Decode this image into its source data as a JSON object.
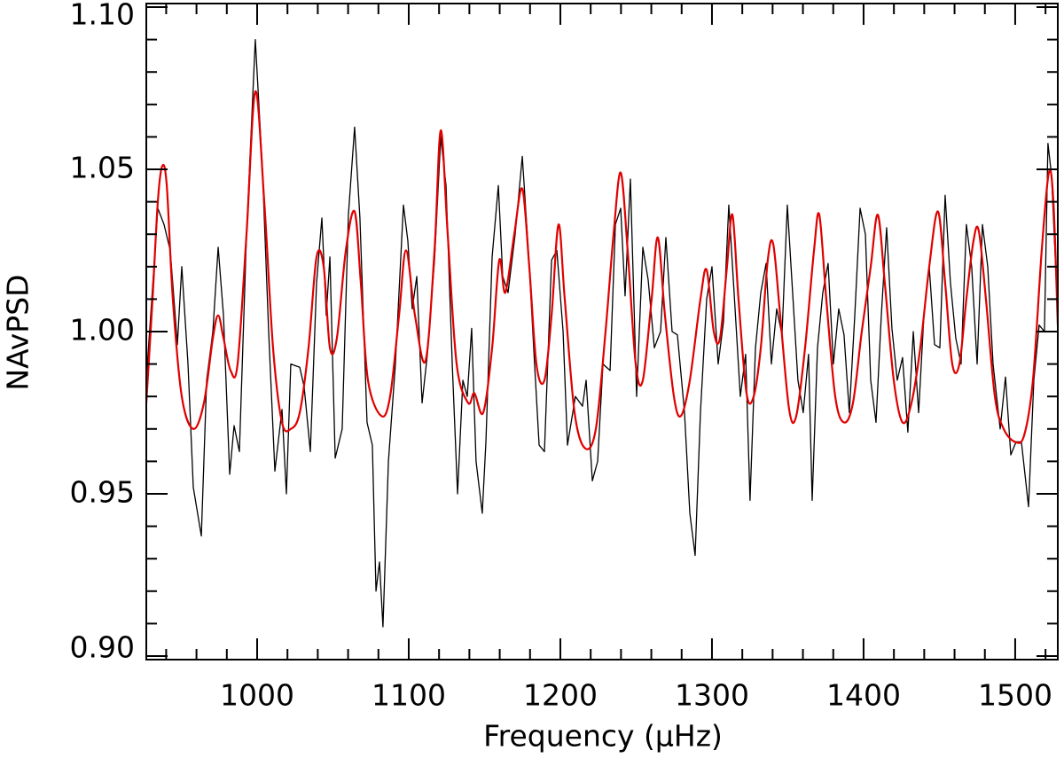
{
  "chart_data": {
    "type": "line",
    "xlabel": "Frequency (μHz)",
    "ylabel": "NAvPSD",
    "xlim": [
      926.9,
      1528.1
    ],
    "ylim": [
      0.8989,
      1.1011
    ],
    "xticks": [
      1000,
      1100,
      1200,
      1300,
      1400,
      1500
    ],
    "xminorticks": [
      940,
      960,
      980,
      1020,
      1040,
      1060,
      1080,
      1120,
      1140,
      1160,
      1180,
      1220,
      1240,
      1260,
      1280,
      1320,
      1340,
      1360,
      1380,
      1420,
      1440,
      1460,
      1480,
      1520
    ],
    "yticks": [
      {
        "value": 0.9,
        "label": "0.90"
      },
      0.95,
      {
        "value": 1,
        "label": "1.00"
      },
      1.05,
      {
        "value": 1.1,
        "label": "1.10"
      }
    ],
    "yminorticks": [
      0.91,
      0.92,
      0.93,
      0.94,
      0.96,
      0.97,
      0.98,
      0.99,
      1.01,
      1.02,
      1.03,
      1.04,
      1.06,
      1.07,
      1.08,
      1.09
    ],
    "series": [
      {
        "color": "#000000",
        "smooth": false,
        "x": [
          926.9,
          929.8,
          934.5,
          938.6,
          942.7,
          947.4,
          950.3,
          954.4,
          957.9,
          963.2,
          966.7,
          970.8,
          974.3,
          977.8,
          981.9,
          984.8,
          988.3,
          993.0,
          998.8,
          1003.5,
          1007.6,
          1011.7,
          1016.4,
          1019.3,
          1022.2,
          1028.1,
          1031.0,
          1035.1,
          1039.2,
          1042.7,
          1045.6,
          1048.0,
          1051.5,
          1056.1,
          1060.2,
          1064.3,
          1067.8,
          1072.5,
          1076.0,
          1078.4,
          1080.7,
          1083.0,
          1086.6,
          1091.2,
          1096.5,
          1099.4,
          1102.3,
          1105.3,
          1108.8,
          1112.3,
          1117.0,
          1121.1,
          1124.6,
          1128.7,
          1132.2,
          1135.7,
          1138.6,
          1141.5,
          1144.4,
          1148.5,
          1150.9,
          1155.0,
          1159.1,
          1162.0,
          1165.5,
          1170.2,
          1174.9,
          1178.9,
          1183.0,
          1186.0,
          1189.5,
          1194.2,
          1197.7,
          1201.8,
          1204.7,
          1209.9,
          1214.6,
          1217.0,
          1221.1,
          1224.6,
          1228.1,
          1232.8,
          1236.3,
          1239.8,
          1242.7,
          1246.2,
          1250.3,
          1254.4,
          1257.9,
          1262.0,
          1266.1,
          1269.6,
          1273.7,
          1277.2,
          1281.9,
          1285.4,
          1288.9,
          1292.4,
          1296.5,
          1300.0,
          1304.1,
          1307.6,
          1311.1,
          1314.6,
          1318.7,
          1322.2,
          1325.1,
          1328.7,
          1332.2,
          1335.7,
          1339.2,
          1342.7,
          1346.2,
          1349.7,
          1353.2,
          1356.7,
          1360.2,
          1363.7,
          1366.1,
          1369.6,
          1373.1,
          1376.6,
          1380.1,
          1383.6,
          1387.1,
          1390.6,
          1394.2,
          1397.7,
          1401.2,
          1404.7,
          1408.2,
          1411.7,
          1415.2,
          1418.7,
          1422.2,
          1425.7,
          1429.2,
          1432.8,
          1436.3,
          1439.8,
          1443.3,
          1446.8,
          1450.3,
          1453.8,
          1457.3,
          1460.8,
          1464.3,
          1467.8,
          1471.3,
          1474.9,
          1478.4,
          1481.9,
          1485.4,
          1490.1,
          1493.6,
          1497.1,
          1500.6,
          1504.1,
          1508.8,
          1512.3,
          1515.8,
          1519.3,
          1521.6,
          1524.0,
          1528.1
        ],
        "values": [
          0.985,
          1.005,
          1.038,
          1.033,
          1.025,
          0.996,
          1.02,
          0.99,
          0.952,
          0.937,
          0.985,
          1.0,
          1.026,
          1.005,
          0.956,
          0.971,
          0.963,
          1.03,
          1.09,
          1.05,
          1.0,
          0.957,
          0.976,
          0.95,
          0.99,
          0.989,
          0.983,
          0.963,
          1.015,
          1.035,
          1.005,
          1.023,
          0.961,
          0.97,
          1.036,
          1.063,
          1.035,
          0.972,
          0.965,
          0.92,
          0.929,
          0.909,
          0.96,
          0.99,
          1.039,
          1.028,
          1.007,
          1.017,
          0.978,
          0.993,
          1.022,
          1.06,
          1.045,
          0.99,
          0.95,
          0.985,
          0.98,
          1.001,
          0.96,
          0.944,
          0.966,
          1.023,
          1.045,
          1.017,
          1.012,
          1.03,
          1.054,
          1.025,
          0.99,
          0.965,
          0.963,
          1.022,
          1.025,
          1.0,
          0.965,
          0.98,
          0.977,
          0.985,
          0.954,
          0.96,
          0.99,
          0.988,
          1.033,
          1.038,
          1.011,
          1.047,
          0.98,
          1.026,
          1.016,
          0.995,
          1.0,
          1.029,
          1.0,
          0.999,
          0.975,
          0.944,
          0.931,
          0.975,
          1.01,
          1.02,
          0.99,
          1.003,
          1.039,
          1.012,
          0.98,
          0.993,
          0.948,
          0.995,
          1.012,
          1.021,
          0.99,
          1.007,
          0.999,
          1.039,
          1.012,
          0.985,
          0.975,
          0.993,
          0.948,
          0.995,
          1.012,
          1.021,
          0.99,
          1.007,
          0.999,
          0.975,
          1.005,
          1.038,
          1.03,
          0.985,
          0.972,
          1.005,
          1.032,
          1.001,
          0.985,
          0.992,
          0.969,
          1.0,
          0.975,
          1.005,
          1.02,
          0.996,
          0.995,
          1.042,
          1.015,
          0.998,
          0.99,
          1.033,
          1.02,
          0.99,
          1.033,
          1.02,
          0.99,
          0.97,
          0.986,
          0.962,
          0.966,
          0.966,
          0.946,
          0.985,
          1.002,
          1.0,
          1.058,
          1.048,
          1.005
        ]
      },
      {
        "color": "#e00000",
        "smooth": true,
        "x": [
          926.9,
          931.0,
          934.5,
          937.4,
          940.4,
          944.4,
          950.3,
          957.9,
          964.9,
          970.8,
          974.3,
          977.8,
          982.5,
          987.1,
          993.0,
          998.8,
          1004.7,
          1010.5,
          1016.4,
          1022.2,
          1028.1,
          1033.9,
          1039.2,
          1043.9,
          1048.0,
          1052.6,
          1058.5,
          1064.3,
          1068.4,
          1073.1,
          1081.9,
          1087.7,
          1093.6,
          1098.2,
          1104.1,
          1111.1,
          1117.0,
          1121.1,
          1125.7,
          1131.6,
          1139.2,
          1143.3,
          1149.1,
          1155.0,
          1159.7,
          1163.7,
          1169.6,
          1174.9,
          1179.5,
          1184.2,
          1189.5,
          1194.2,
          1198.8,
          1202.9,
          1209.4,
          1216.4,
          1223.4,
          1229.8,
          1235.1,
          1239.8,
          1244.4,
          1249.7,
          1254.4,
          1260.2,
          1264.3,
          1269.0,
          1274.9,
          1279.5,
          1285.4,
          1292.4,
          1296.5,
          1301.2,
          1305.3,
          1309.9,
          1313.5,
          1317.5,
          1322.8,
          1327.5,
          1332.2,
          1336.8,
          1340.4,
          1345.0,
          1350.9,
          1355.6,
          1361.4,
          1367.3,
          1370.8,
          1375.4,
          1381.3,
          1387.1,
          1393.0,
          1398.8,
          1404.7,
          1409.4,
          1414.0,
          1419.9,
          1425.7,
          1431.6,
          1437.4,
          1443.3,
          1449.1,
          1453.8,
          1458.5,
          1463.2,
          1467.8,
          1472.5,
          1476.0,
          1480.7,
          1486.6,
          1492.4,
          1500.0,
          1505.9,
          1511.7,
          1517.5,
          1522.2,
          1525.2,
          1528.1
        ],
        "values": [
          0.978,
          1.01,
          1.04,
          1.051,
          1.045,
          1.01,
          0.98,
          0.97,
          0.978,
          0.998,
          1.005,
          0.998,
          0.988,
          0.99,
          1.03,
          1.074,
          1.04,
          0.995,
          0.972,
          0.97,
          0.975,
          0.995,
          1.023,
          1.02,
          0.995,
          0.998,
          1.025,
          1.037,
          1.015,
          0.985,
          0.974,
          0.98,
          1.005,
          1.025,
          1.005,
          0.991,
          1.025,
          1.062,
          1.03,
          0.99,
          0.978,
          0.981,
          0.975,
          0.995,
          1.022,
          1.012,
          1.03,
          1.044,
          1.02,
          0.99,
          0.985,
          1.005,
          1.033,
          1.01,
          0.975,
          0.964,
          0.97,
          1.0,
          1.03,
          1.049,
          1.025,
          0.99,
          0.985,
          1.01,
          1.029,
          1.005,
          0.98,
          0.974,
          0.985,
          1.01,
          1.019,
          1.0,
          0.998,
          1.02,
          1.036,
          1.01,
          0.981,
          0.98,
          0.995,
          1.022,
          1.027,
          1.005,
          0.976,
          0.974,
          0.995,
          1.025,
          1.036,
          1.01,
          0.98,
          0.972,
          0.978,
          1.0,
          1.02,
          1.036,
          1.015,
          0.985,
          0.972,
          0.978,
          0.995,
          1.02,
          1.037,
          1.015,
          0.99,
          0.99,
          1.01,
          1.028,
          1.031,
          1.01,
          0.98,
          0.97,
          0.966,
          0.968,
          0.985,
          1.025,
          1.049,
          1.04,
          1.002
        ]
      }
    ]
  }
}
